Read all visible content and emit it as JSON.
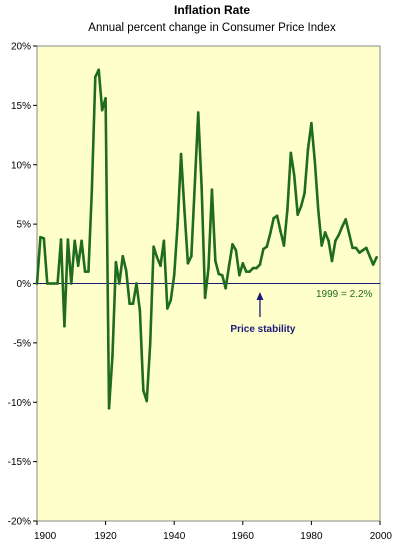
{
  "chart_data": {
    "type": "line",
    "title": "Inflation Rate",
    "subtitle": "Annual percent change in Consumer Price Index",
    "xlabel": "",
    "ylabel": "",
    "xlim": [
      1900,
      2000
    ],
    "ylim": [
      -20,
      20
    ],
    "x_ticks": [
      1900,
      1920,
      1940,
      1960,
      1980,
      2000
    ],
    "y_ticks": [
      -20,
      -15,
      -10,
      -5,
      0,
      5,
      10,
      15,
      20
    ],
    "y_tick_labels": [
      "-20%",
      "-15%",
      "-10%",
      "-5%",
      "0%",
      "5%",
      "10%",
      "15%",
      "20%"
    ],
    "x_tick_labels": [
      "1900",
      "1920",
      "1940",
      "1960",
      "1980",
      "2000"
    ],
    "grid": false,
    "background_color": "#FFFFCC",
    "line_color": "#1f6b1f",
    "zero_line_color": "#1a1a7a",
    "series": [
      {
        "x": [
          1900,
          1901,
          1902,
          1903,
          1904,
          1905,
          1906,
          1907,
          1908,
          1909,
          1910,
          1911,
          1912,
          1913,
          1914,
          1915,
          1916,
          1917,
          1918,
          1919,
          1920,
          1921,
          1922,
          1923,
          1924,
          1925,
          1926,
          1927,
          1928,
          1929,
          1930,
          1931,
          1932,
          1933,
          1934,
          1935,
          1936,
          1937,
          1938,
          1939,
          1940,
          1941,
          1942,
          1943,
          1944,
          1945,
          1946,
          1947,
          1948,
          1949,
          1950,
          1951,
          1952,
          1953,
          1954,
          1955,
          1956,
          1957,
          1958,
          1959,
          1960,
          1961,
          1962,
          1963,
          1964,
          1965,
          1966,
          1967,
          1968,
          1969,
          1970,
          1971,
          1972,
          1973,
          1974,
          1975,
          1976,
          1977,
          1978,
          1979,
          1980,
          1981,
          1982,
          1983,
          1984,
          1985,
          1986,
          1987,
          1988,
          1989,
          1990,
          1991,
          1992,
          1993,
          1994,
          1995,
          1996,
          1997,
          1998,
          1999
        ],
        "values": [
          0.0,
          3.9,
          3.8,
          0.0,
          0.0,
          0.0,
          0.0,
          3.7,
          -3.6,
          3.7,
          0.0,
          3.6,
          1.5,
          3.6,
          1.0,
          1.0,
          7.9,
          17.4,
          18.0,
          14.6,
          15.6,
          -10.5,
          -6.1,
          1.8,
          0.0,
          2.3,
          1.1,
          -1.7,
          -1.7,
          0.0,
          -2.3,
          -9.0,
          -9.9,
          -5.1,
          3.1,
          2.2,
          1.5,
          3.6,
          -2.1,
          -1.4,
          0.7,
          5.0,
          10.9,
          6.1,
          1.7,
          2.3,
          8.3,
          14.4,
          8.1,
          -1.2,
          1.3,
          7.9,
          1.9,
          0.8,
          0.7,
          -0.4,
          1.5,
          3.3,
          2.8,
          0.7,
          1.7,
          1.0,
          1.0,
          1.3,
          1.3,
          1.6,
          2.9,
          3.1,
          4.2,
          5.5,
          5.7,
          4.4,
          3.2,
          6.2,
          11.0,
          9.1,
          5.8,
          6.5,
          7.6,
          11.3,
          13.5,
          10.3,
          6.2,
          3.2,
          4.3,
          3.6,
          1.9,
          3.6,
          4.1,
          4.8,
          5.4,
          4.2,
          3.0,
          3.0,
          2.6,
          2.8,
          3.0,
          2.3,
          1.6,
          2.2
        ]
      }
    ],
    "annotations": [
      {
        "text": "1999 = 2.2%",
        "x": 1980,
        "y": 0
      },
      {
        "text": "Price stability",
        "x": 1965,
        "y": 0
      }
    ]
  }
}
